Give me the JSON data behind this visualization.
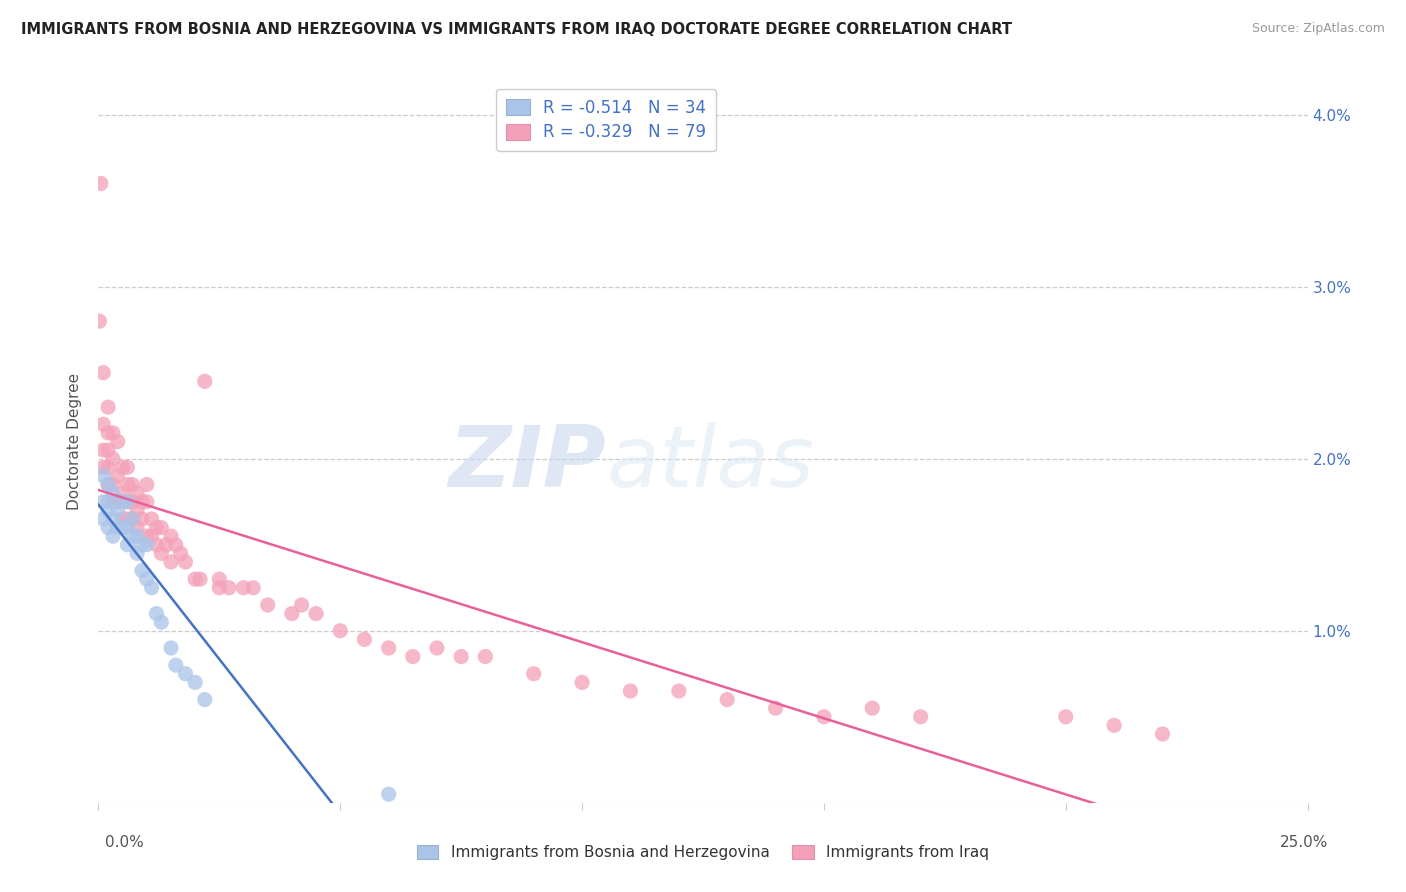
{
  "title": "IMMIGRANTS FROM BOSNIA AND HERZEGOVINA VS IMMIGRANTS FROM IRAQ DOCTORATE DEGREE CORRELATION CHART",
  "source": "Source: ZipAtlas.com",
  "ylabel": "Doctorate Degree",
  "watermark_zip": "ZIP",
  "watermark_atlas": "atlas",
  "legend_bosnia_R": "-0.514",
  "legend_bosnia_N": "34",
  "legend_iraq_R": "-0.329",
  "legend_iraq_N": "79",
  "color_bosnia": "#aac4e8",
  "color_iraq": "#f4a0b8",
  "line_color_bosnia": "#4472c4",
  "line_color_iraq": "#e8609a",
  "xlim": [
    0.0,
    0.25
  ],
  "ylim": [
    0.0,
    0.042
  ],
  "background_color": "#ffffff",
  "grid_color": "#cccccc",
  "bosnia_x": [
    0.001,
    0.001,
    0.001,
    0.002,
    0.002,
    0.002,
    0.002,
    0.003,
    0.003,
    0.003,
    0.004,
    0.004,
    0.005,
    0.005,
    0.006,
    0.006,
    0.006,
    0.007,
    0.007,
    0.008,
    0.008,
    0.009,
    0.009,
    0.01,
    0.01,
    0.011,
    0.012,
    0.013,
    0.015,
    0.016,
    0.018,
    0.02,
    0.022,
    0.06
  ],
  "bosnia_y": [
    0.019,
    0.0175,
    0.0165,
    0.0185,
    0.0175,
    0.017,
    0.016,
    0.018,
    0.0165,
    0.0155,
    0.017,
    0.016,
    0.0175,
    0.016,
    0.0175,
    0.016,
    0.015,
    0.0165,
    0.0155,
    0.0155,
    0.0145,
    0.015,
    0.0135,
    0.015,
    0.013,
    0.0125,
    0.011,
    0.0105,
    0.009,
    0.008,
    0.0075,
    0.007,
    0.006,
    0.0005
  ],
  "iraq_x": [
    0.0002,
    0.0005,
    0.001,
    0.001,
    0.001,
    0.001,
    0.002,
    0.002,
    0.002,
    0.002,
    0.002,
    0.003,
    0.003,
    0.003,
    0.003,
    0.004,
    0.004,
    0.004,
    0.005,
    0.005,
    0.005,
    0.006,
    0.006,
    0.006,
    0.006,
    0.007,
    0.007,
    0.007,
    0.008,
    0.008,
    0.008,
    0.009,
    0.009,
    0.01,
    0.01,
    0.01,
    0.011,
    0.011,
    0.012,
    0.012,
    0.013,
    0.013,
    0.014,
    0.015,
    0.015,
    0.016,
    0.017,
    0.018,
    0.02,
    0.021,
    0.022,
    0.025,
    0.025,
    0.027,
    0.03,
    0.032,
    0.035,
    0.04,
    0.042,
    0.045,
    0.05,
    0.055,
    0.06,
    0.065,
    0.07,
    0.075,
    0.08,
    0.09,
    0.1,
    0.11,
    0.12,
    0.13,
    0.14,
    0.15,
    0.16,
    0.17,
    0.2,
    0.21,
    0.22
  ],
  "iraq_y": [
    0.028,
    0.036,
    0.025,
    0.022,
    0.0205,
    0.0195,
    0.023,
    0.0215,
    0.0205,
    0.0195,
    0.0185,
    0.0215,
    0.02,
    0.0185,
    0.0175,
    0.021,
    0.019,
    0.0175,
    0.0195,
    0.018,
    0.0165,
    0.0195,
    0.0185,
    0.0175,
    0.0165,
    0.0185,
    0.0175,
    0.0165,
    0.018,
    0.017,
    0.016,
    0.0175,
    0.0165,
    0.0185,
    0.0175,
    0.0155,
    0.0165,
    0.0155,
    0.016,
    0.015,
    0.016,
    0.0145,
    0.015,
    0.0155,
    0.014,
    0.015,
    0.0145,
    0.014,
    0.013,
    0.013,
    0.0245,
    0.013,
    0.0125,
    0.0125,
    0.0125,
    0.0125,
    0.0115,
    0.011,
    0.0115,
    0.011,
    0.01,
    0.0095,
    0.009,
    0.0085,
    0.009,
    0.0085,
    0.0085,
    0.0075,
    0.007,
    0.0065,
    0.0065,
    0.006,
    0.0055,
    0.005,
    0.0055,
    0.005,
    0.005,
    0.0045,
    0.004
  ]
}
